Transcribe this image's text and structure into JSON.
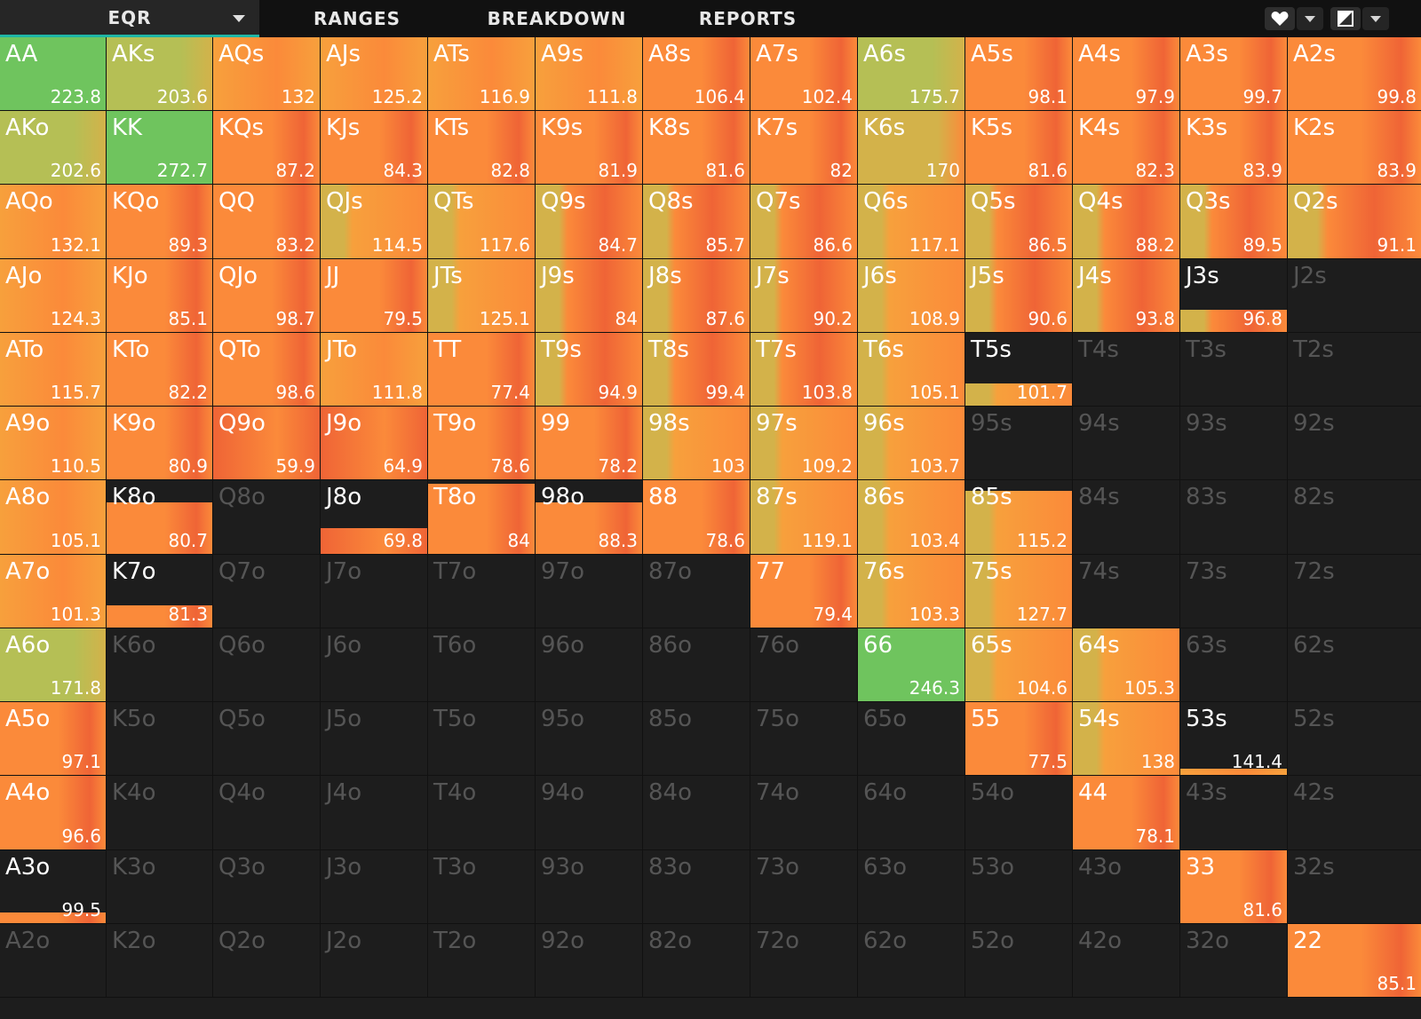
{
  "tabs": [
    {
      "label": "EQR",
      "active": true,
      "dropdown": true
    },
    {
      "label": "RANGES",
      "active": false
    },
    {
      "label": "BREAKDOWN",
      "active": false
    },
    {
      "label": "REPORTS",
      "active": false
    }
  ],
  "toolbar": {
    "icons": [
      "heart-icon",
      "chevron-down-icon",
      "contrast-icon",
      "chevron-down-icon"
    ]
  },
  "colors": {
    "green": "#6fc45e",
    "olive": "#b5bf55",
    "mustard": "#d3b24a",
    "orange": "#fb8a3a",
    "light_orange": "#f7a03c",
    "red_orange": "#ef6436",
    "empty": "#1d1d1d"
  },
  "grid": {
    "rows": [
      [
        [
          "AA",
          "223.8",
          1,
          "g"
        ],
        [
          "AKs",
          "203.6",
          1,
          "o"
        ],
        [
          "AQs",
          "132",
          1,
          "l"
        ],
        [
          "AJs",
          "125.2",
          1,
          "l"
        ],
        [
          "ATs",
          "116.9",
          1,
          "l"
        ],
        [
          "A9s",
          "111.8",
          1,
          "l"
        ],
        [
          "A8s",
          "106.4",
          1,
          "n"
        ],
        [
          "A7s",
          "102.4",
          1,
          "n"
        ],
        [
          "A6s",
          "175.7",
          1,
          "o"
        ],
        [
          "A5s",
          "98.1",
          1,
          "n"
        ],
        [
          "A4s",
          "97.9",
          1,
          "n"
        ],
        [
          "A3s",
          "99.7",
          1,
          "n"
        ],
        [
          "A2s",
          "99.8",
          1,
          "n"
        ]
      ],
      [
        [
          "AKo",
          "202.6",
          1,
          "o"
        ],
        [
          "KK",
          "272.7",
          1,
          "g"
        ],
        [
          "KQs",
          "87.2",
          1,
          "n"
        ],
        [
          "KJs",
          "84.3",
          1,
          "n"
        ],
        [
          "KTs",
          "82.8",
          1,
          "n"
        ],
        [
          "K9s",
          "81.9",
          1,
          "n"
        ],
        [
          "K8s",
          "81.6",
          1,
          "n"
        ],
        [
          "K7s",
          "82",
          1,
          "n"
        ],
        [
          "K6s",
          "170",
          1,
          "m"
        ],
        [
          "K5s",
          "81.6",
          1,
          "n"
        ],
        [
          "K4s",
          "82.3",
          1,
          "n"
        ],
        [
          "K3s",
          "83.9",
          1,
          "n"
        ],
        [
          "K2s",
          "83.9",
          1,
          "n"
        ]
      ],
      [
        [
          "AQo",
          "132.1",
          1,
          "l"
        ],
        [
          "KQo",
          "89.3",
          1,
          "n"
        ],
        [
          "QQ",
          "83.2",
          1,
          "n"
        ],
        [
          "QJs",
          "114.5",
          1,
          "lm"
        ],
        [
          "QTs",
          "117.6",
          1,
          "lm"
        ],
        [
          "Q9s",
          "84.7",
          1,
          "rm"
        ],
        [
          "Q8s",
          "85.7",
          1,
          "rm"
        ],
        [
          "Q7s",
          "86.6",
          1,
          "rm"
        ],
        [
          "Q6s",
          "117.1",
          1,
          "lm"
        ],
        [
          "Q5s",
          "86.5",
          1,
          "rm"
        ],
        [
          "Q4s",
          "88.2",
          1,
          "rm"
        ],
        [
          "Q3s",
          "89.5",
          1,
          "rm"
        ],
        [
          "Q2s",
          "91.1",
          1,
          "rm"
        ]
      ],
      [
        [
          "AJo",
          "124.3",
          1,
          "l"
        ],
        [
          "KJo",
          "85.1",
          1,
          "n"
        ],
        [
          "QJo",
          "98.7",
          1,
          "n"
        ],
        [
          "JJ",
          "79.5",
          1,
          "n"
        ],
        [
          "JTs",
          "125.1",
          1,
          "lm"
        ],
        [
          "J9s",
          "84",
          1,
          "rm"
        ],
        [
          "J8s",
          "87.6",
          1,
          "rm"
        ],
        [
          "J7s",
          "90.2",
          1,
          "rm"
        ],
        [
          "J6s",
          "108.9",
          1,
          "lm"
        ],
        [
          "J5s",
          "90.6",
          1,
          "rm"
        ],
        [
          "J4s",
          "93.8",
          1,
          "rm"
        ],
        [
          "J3s",
          "96.8",
          0.3,
          "rm"
        ],
        [
          "J2s",
          "",
          0,
          "n"
        ]
      ],
      [
        [
          "ATo",
          "115.7",
          1,
          "l"
        ],
        [
          "KTo",
          "82.2",
          1,
          "n"
        ],
        [
          "QTo",
          "98.6",
          1,
          "n"
        ],
        [
          "JTo",
          "111.8",
          1,
          "l"
        ],
        [
          "TT",
          "77.4",
          1,
          "n"
        ],
        [
          "T9s",
          "94.9",
          1,
          "rm"
        ],
        [
          "T8s",
          "99.4",
          1,
          "rm"
        ],
        [
          "T7s",
          "103.8",
          1,
          "rm"
        ],
        [
          "T6s",
          "105.1",
          1,
          "lm"
        ],
        [
          "T5s",
          "101.7",
          0.3,
          "lm"
        ],
        [
          "T4s",
          "",
          0,
          "n"
        ],
        [
          "T3s",
          "",
          0,
          "n"
        ],
        [
          "T2s",
          "",
          0,
          "n"
        ]
      ],
      [
        [
          "A9o",
          "110.5",
          1,
          "l"
        ],
        [
          "K9o",
          "80.9",
          1,
          "n"
        ],
        [
          "Q9o",
          "59.9",
          1,
          "r"
        ],
        [
          "J9o",
          "64.9",
          1,
          "r"
        ],
        [
          "T9o",
          "78.6",
          1,
          "n"
        ],
        [
          "99",
          "78.2",
          1,
          "n"
        ],
        [
          "98s",
          "103",
          1,
          "lm"
        ],
        [
          "97s",
          "109.2",
          1,
          "lm"
        ],
        [
          "96s",
          "103.7",
          1,
          "lm"
        ],
        [
          "95s",
          "",
          0,
          "n"
        ],
        [
          "94s",
          "",
          0,
          "n"
        ],
        [
          "93s",
          "",
          0,
          "n"
        ],
        [
          "92s",
          "",
          0,
          "n"
        ]
      ],
      [
        [
          "A8o",
          "105.1",
          1,
          "l"
        ],
        [
          "K8o",
          "80.7",
          0.7,
          "n"
        ],
        [
          "Q8o",
          "",
          0,
          "n"
        ],
        [
          "J8o",
          "69.8",
          0.35,
          "r"
        ],
        [
          "T8o",
          "84",
          0.95,
          "n"
        ],
        [
          "98o",
          "88.3",
          0.7,
          "n"
        ],
        [
          "88",
          "78.6",
          1,
          "n"
        ],
        [
          "87s",
          "119.1",
          1,
          "lm"
        ],
        [
          "86s",
          "103.4",
          1,
          "lm"
        ],
        [
          "85s",
          "115.2",
          0.85,
          "lm"
        ],
        [
          "84s",
          "",
          0,
          "n"
        ],
        [
          "83s",
          "",
          0,
          "n"
        ],
        [
          "82s",
          "",
          0,
          "n"
        ]
      ],
      [
        [
          "A7o",
          "101.3",
          1,
          "l"
        ],
        [
          "K7o",
          "81.3",
          0.3,
          "n"
        ],
        [
          "Q7o",
          "",
          0,
          "n"
        ],
        [
          "J7o",
          "",
          0,
          "n"
        ],
        [
          "T7o",
          "",
          0,
          "n"
        ],
        [
          "97o",
          "",
          0,
          "n"
        ],
        [
          "87o",
          "",
          0,
          "n"
        ],
        [
          "77",
          "79.4",
          1,
          "n"
        ],
        [
          "76s",
          "103.3",
          1,
          "lm"
        ],
        [
          "75s",
          "127.7",
          1,
          "lm"
        ],
        [
          "74s",
          "",
          0,
          "n"
        ],
        [
          "73s",
          "",
          0,
          "n"
        ],
        [
          "72s",
          "",
          0,
          "n"
        ]
      ],
      [
        [
          "A6o",
          "171.8",
          1,
          "o"
        ],
        [
          "K6o",
          "",
          0,
          "n"
        ],
        [
          "Q6o",
          "",
          0,
          "n"
        ],
        [
          "J6o",
          "",
          0,
          "n"
        ],
        [
          "T6o",
          "",
          0,
          "n"
        ],
        [
          "96o",
          "",
          0,
          "n"
        ],
        [
          "86o",
          "",
          0,
          "n"
        ],
        [
          "76o",
          "",
          0,
          "n"
        ],
        [
          "66",
          "246.3",
          1,
          "g"
        ],
        [
          "65s",
          "104.6",
          1,
          "lm"
        ],
        [
          "64s",
          "105.3",
          1,
          "lm"
        ],
        [
          "63s",
          "",
          0,
          "n"
        ],
        [
          "62s",
          "",
          0,
          "n"
        ]
      ],
      [
        [
          "A5o",
          "97.1",
          1,
          "n"
        ],
        [
          "K5o",
          "",
          0,
          "n"
        ],
        [
          "Q5o",
          "",
          0,
          "n"
        ],
        [
          "J5o",
          "",
          0,
          "n"
        ],
        [
          "T5o",
          "",
          0,
          "n"
        ],
        [
          "95o",
          "",
          0,
          "n"
        ],
        [
          "85o",
          "",
          0,
          "n"
        ],
        [
          "75o",
          "",
          0,
          "n"
        ],
        [
          "65o",
          "",
          0,
          "n"
        ],
        [
          "55",
          "77.5",
          1,
          "n"
        ],
        [
          "54s",
          "138",
          1,
          "lm"
        ],
        [
          "53s",
          "141.4",
          0.08,
          "l"
        ],
        [
          "52s",
          "",
          0,
          "n"
        ]
      ],
      [
        [
          "A4o",
          "96.6",
          1,
          "n"
        ],
        [
          "K4o",
          "",
          0,
          "n"
        ],
        [
          "Q4o",
          "",
          0,
          "n"
        ],
        [
          "J4o",
          "",
          0,
          "n"
        ],
        [
          "T4o",
          "",
          0,
          "n"
        ],
        [
          "94o",
          "",
          0,
          "n"
        ],
        [
          "84o",
          "",
          0,
          "n"
        ],
        [
          "74o",
          "",
          0,
          "n"
        ],
        [
          "64o",
          "",
          0,
          "n"
        ],
        [
          "54o",
          "",
          0,
          "n"
        ],
        [
          "44",
          "78.1",
          1,
          "n"
        ],
        [
          "43s",
          "",
          0,
          "n"
        ],
        [
          "42s",
          "",
          0,
          "n"
        ]
      ],
      [
        [
          "A3o",
          "99.5",
          0.15,
          "n"
        ],
        [
          "K3o",
          "",
          0,
          "n"
        ],
        [
          "Q3o",
          "",
          0,
          "n"
        ],
        [
          "J3o",
          "",
          0,
          "n"
        ],
        [
          "T3o",
          "",
          0,
          "n"
        ],
        [
          "93o",
          "",
          0,
          "n"
        ],
        [
          "83o",
          "",
          0,
          "n"
        ],
        [
          "73o",
          "",
          0,
          "n"
        ],
        [
          "63o",
          "",
          0,
          "n"
        ],
        [
          "53o",
          "",
          0,
          "n"
        ],
        [
          "43o",
          "",
          0,
          "n"
        ],
        [
          "33",
          "81.6",
          1,
          "n"
        ],
        [
          "32s",
          "",
          0,
          "n"
        ]
      ],
      [
        [
          "A2o",
          "",
          0,
          "n"
        ],
        [
          "K2o",
          "",
          0,
          "n"
        ],
        [
          "Q2o",
          "",
          0,
          "n"
        ],
        [
          "J2o",
          "",
          0,
          "n"
        ],
        [
          "T2o",
          "",
          0,
          "n"
        ],
        [
          "92o",
          "",
          0,
          "n"
        ],
        [
          "82o",
          "",
          0,
          "n"
        ],
        [
          "72o",
          "",
          0,
          "n"
        ],
        [
          "62o",
          "",
          0,
          "n"
        ],
        [
          "52o",
          "",
          0,
          "n"
        ],
        [
          "42o",
          "",
          0,
          "n"
        ],
        [
          "32o",
          "",
          0,
          "n"
        ],
        [
          "22",
          "85.1",
          1,
          "n"
        ]
      ]
    ]
  }
}
